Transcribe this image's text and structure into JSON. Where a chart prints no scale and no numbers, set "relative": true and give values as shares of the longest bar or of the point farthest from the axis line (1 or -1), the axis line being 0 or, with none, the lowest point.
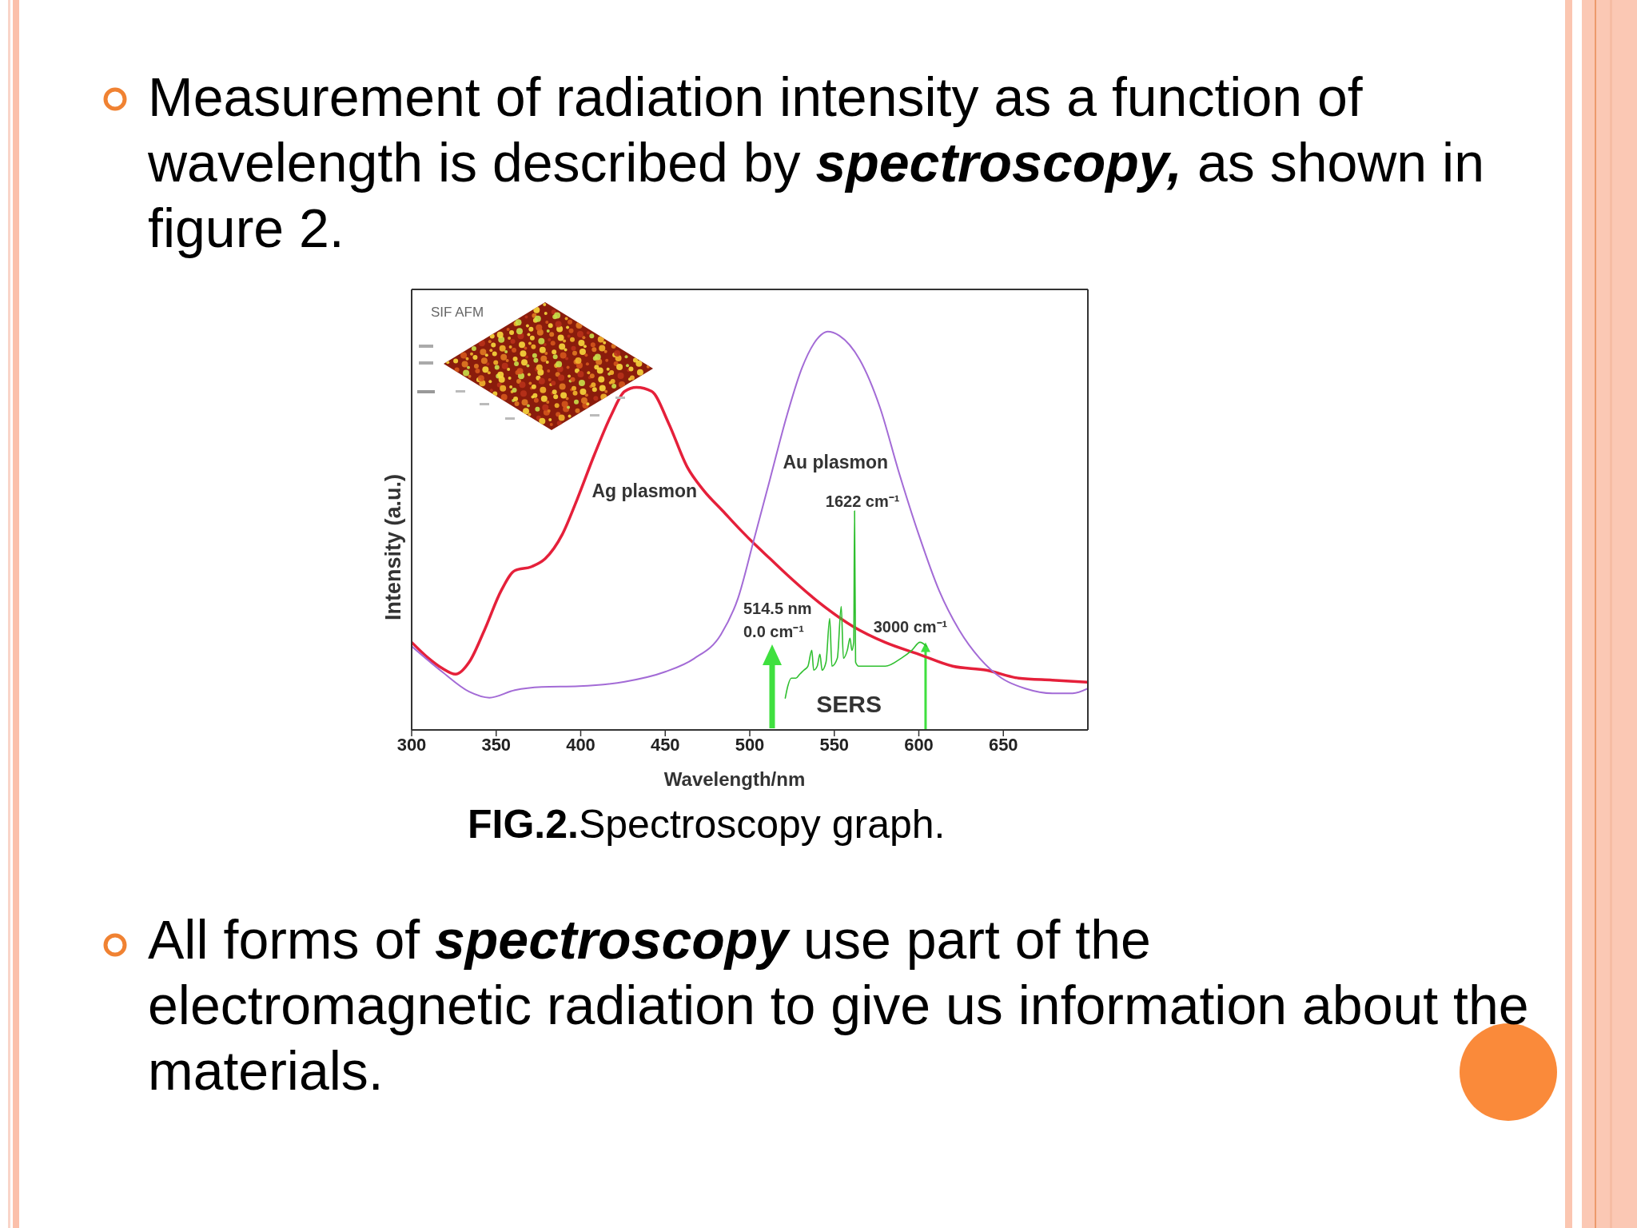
{
  "chart_data": {
    "type": "line",
    "xlabel": "Wavelength/nm",
    "ylabel": "Intensity (a.u.)",
    "relative": true,
    "xlim": [
      300,
      700
    ],
    "xticks": [
      300,
      350,
      400,
      450,
      500,
      550,
      600,
      650
    ],
    "tick_labels": "x",
    "marker": "none",
    "series": [
      {
        "name": "Ag plasmon",
        "color": "#e5203a",
        "x": [
          300,
          310,
          318,
          326,
          334,
          343,
          353,
          361,
          371,
          379,
          389,
          398,
          408,
          418,
          426,
          433,
          442,
          452,
          463,
          473,
          484,
          495,
          502,
          512,
          522,
          541,
          561,
          580,
          600,
          620,
          640,
          659,
          679,
          700
        ],
        "values": [
          0.22,
          0.18,
          0.155,
          0.14,
          0.17,
          0.25,
          0.35,
          0.4,
          0.41,
          0.43,
          0.49,
          0.58,
          0.69,
          0.79,
          0.85,
          0.86,
          0.85,
          0.77,
          0.66,
          0.6,
          0.55,
          0.5,
          0.47,
          0.43,
          0.39,
          0.32,
          0.26,
          0.22,
          0.19,
          0.16,
          0.15,
          0.13,
          0.125,
          0.12
        ]
      },
      {
        "name": "Au plasmon",
        "color": "#a36bd6",
        "x": [
          300,
          318,
          334,
          346,
          361,
          377,
          399,
          426,
          450,
          467,
          483,
          493,
          502,
          512,
          522,
          531,
          541,
          546,
          553,
          565,
          577,
          588,
          600,
          612,
          624,
          636,
          649,
          663,
          679,
          691,
          700
        ],
        "values": [
          0.21,
          0.146,
          0.096,
          0.081,
          0.1,
          0.108,
          0.11,
          0.121,
          0.146,
          0.179,
          0.24,
          0.33,
          0.47,
          0.63,
          0.79,
          0.91,
          0.987,
          1,
          0.99,
          0.93,
          0.81,
          0.65,
          0.49,
          0.35,
          0.25,
          0.18,
          0.13,
          0.104,
          0.092,
          0.092,
          0.104
        ]
      },
      {
        "name": "SERS",
        "color": "#2fbf2f",
        "x": [
          521,
          522.5,
          524.6,
          527.3,
          529.6,
          532,
          534.4,
          536.7,
          537.8,
          539.9,
          541.5,
          542.8,
          545.1,
          547.3,
          548.6,
          551.8,
          554.1,
          555.4,
          557.7,
          559.3,
          560.4,
          561.5,
          562,
          562.6,
          564.4,
          570.7,
          580.2,
          589.6,
          595.9,
          600.7,
          604.6
        ],
        "values": [
          0.08,
          0.11,
          0.13,
          0.13,
          0.14,
          0.15,
          0.16,
          0.2,
          0.15,
          0.16,
          0.19,
          0.15,
          0.17,
          0.28,
          0.16,
          0.18,
          0.31,
          0.18,
          0.2,
          0.23,
          0.2,
          0.22,
          0.55,
          0.17,
          0.16,
          0.16,
          0.16,
          0.18,
          0.2,
          0.22,
          0.21
        ]
      }
    ],
    "annotations": [
      "Measurement of radiation intensity as a function of wavelength is described by spectroscopy, as shown in figure 2.",
      "SIF AFM",
      "FIG.2.Spectroscopy graph.",
      "All forms of spectroscopy use part of the electromagnetic radiation to give us information about the materials.",
      "514.5 nm\n0.0 cm⁻¹",
      {
        "text": "1622 cm⁻¹",
        "x": 562,
        "y": 0.55
      },
      {
        "text": "3000 cm⁻¹",
        "x": 604,
        "y": 0.22
      }
    ]
  }
}
